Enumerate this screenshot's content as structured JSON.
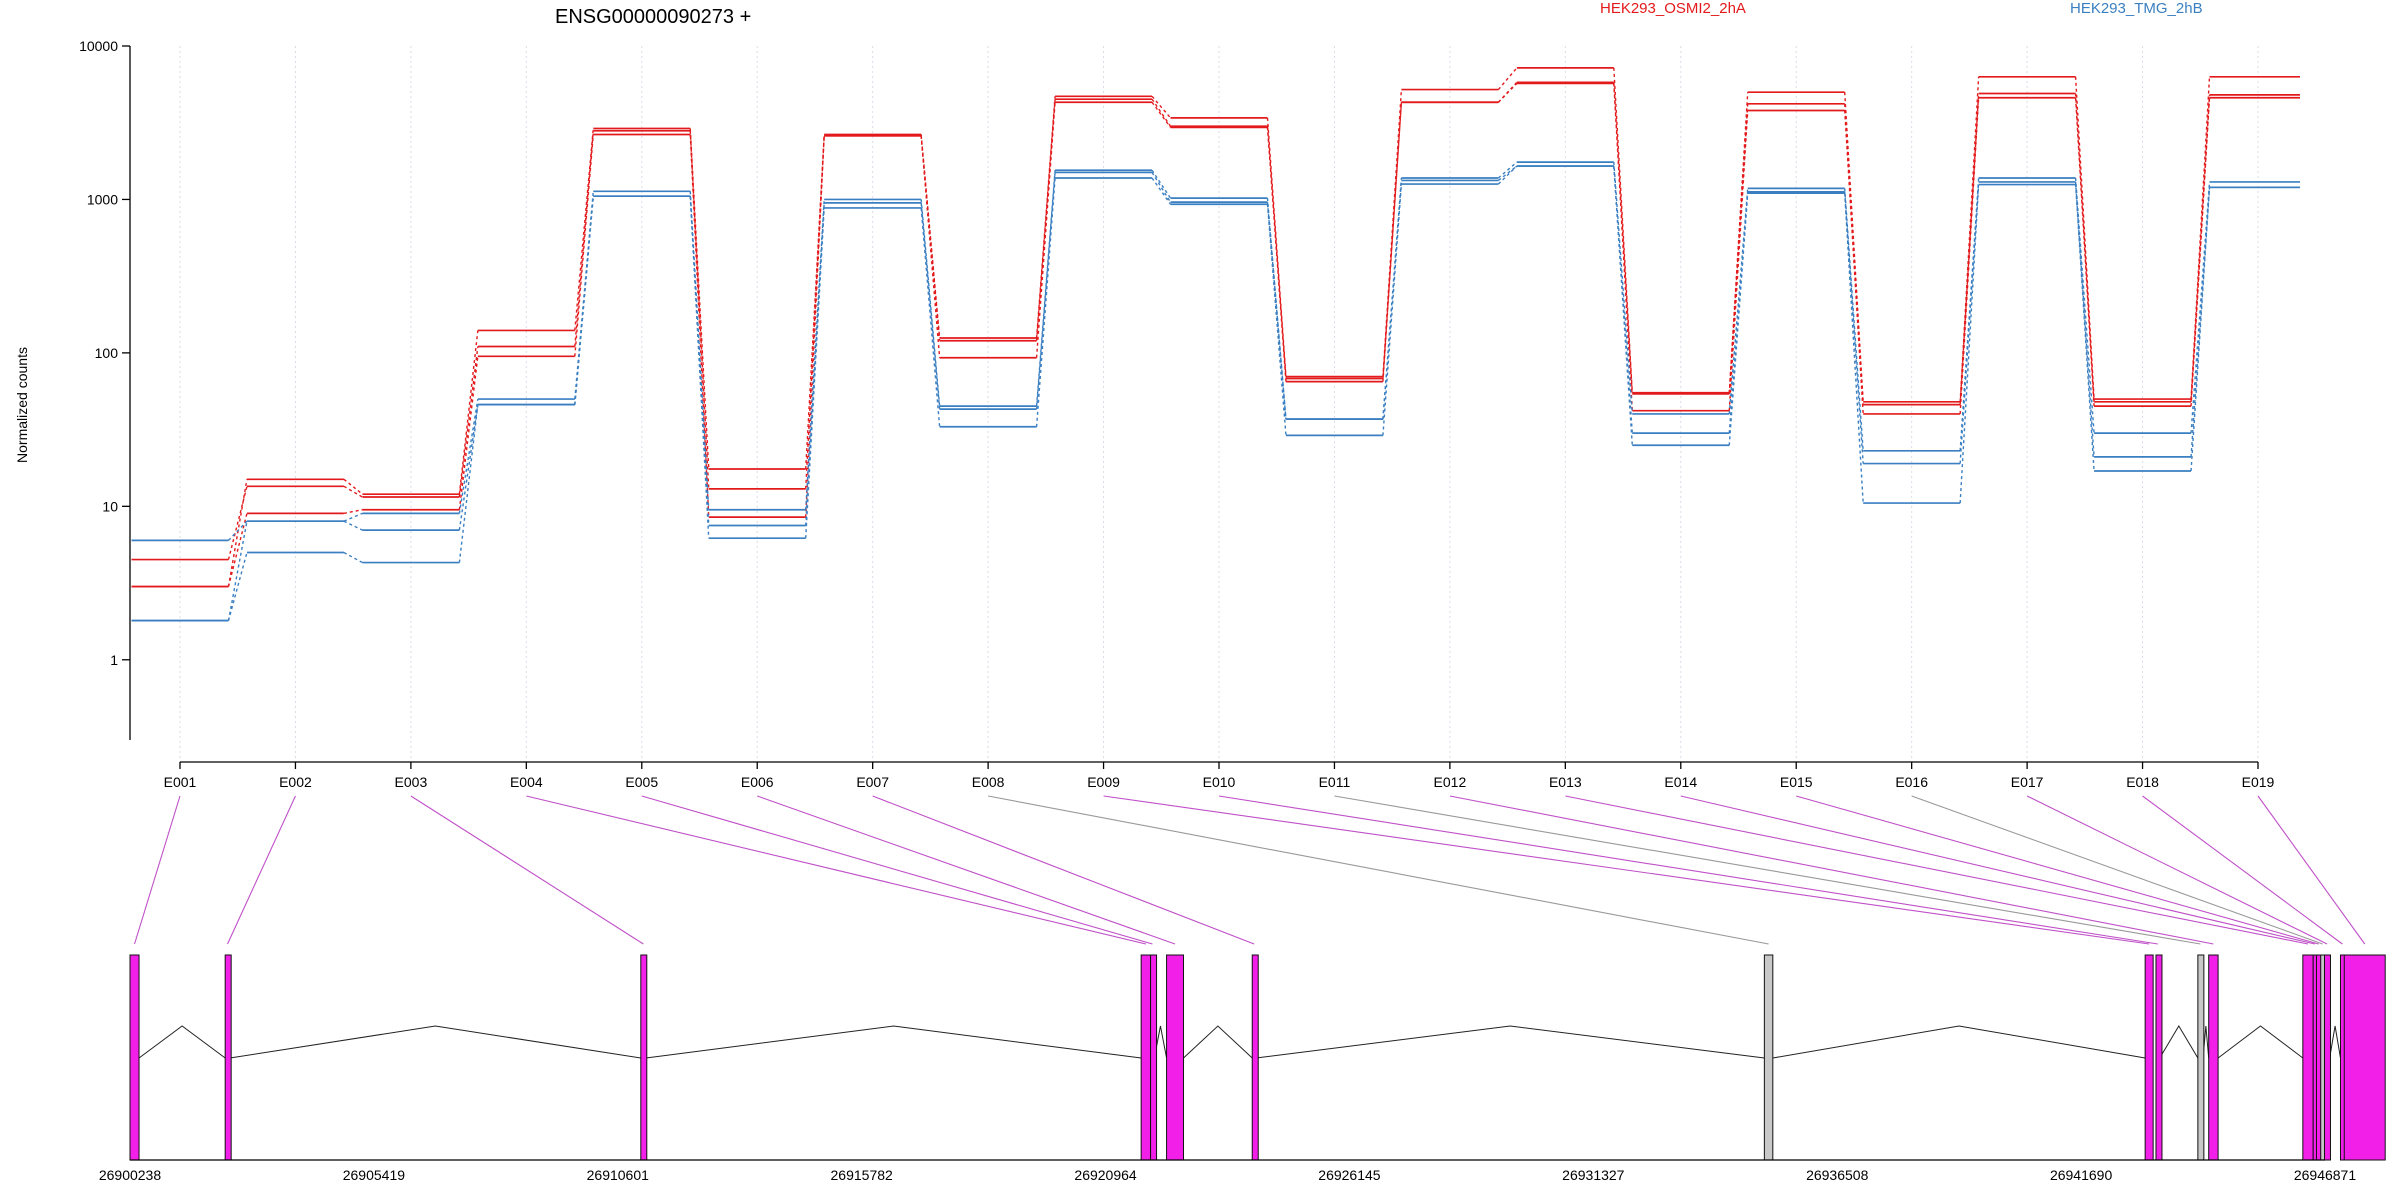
{
  "chart_data": {
    "type": "line",
    "title": "ENSG00000090273 +",
    "ylabel": "Normalized counts",
    "yscale": "log",
    "ylim": [
      0.3,
      10000
    ],
    "ytick_values": [
      1,
      10,
      100,
      1000,
      10000
    ],
    "ytick_labels": [
      "1",
      "10",
      "100",
      "1000",
      "10000"
    ],
    "grid": "vertical dotted at each exon",
    "legend_position": "top-right",
    "colors": {
      "HEK293_OSMI2_2hA": "#e31a1c",
      "HEK293_TMG_2hB": "#3a7fc1",
      "exon_fill": "#f21fe8",
      "exon_gray": "#c8c8c8",
      "connector_magenta": "#c050c8",
      "connector_gray": "#999999"
    },
    "categories": [
      "E001",
      "E002",
      "E003",
      "E004",
      "E005",
      "E006",
      "E007",
      "E008",
      "E009",
      "E010",
      "E011",
      "E012",
      "E013",
      "E014",
      "E015",
      "E016",
      "E017",
      "E018",
      "E019"
    ],
    "series": [
      {
        "name": "HEK293_OSMI2_2hA",
        "color": "#e31a1c",
        "values": [
          3.0,
          15.0,
          12.0,
          140,
          2900,
          17.5,
          2650,
          125,
          4700,
          3400,
          70,
          5200,
          7200,
          55,
          5000,
          48,
          6300,
          50,
          6300
        ]
      },
      {
        "name": "HEK293_OSMI2_2hA",
        "color": "#e31a1c",
        "values": [
          4.5,
          13.5,
          11.5,
          110,
          2800,
          13.0,
          2600,
          120,
          4500,
          3000,
          68,
          4300,
          5800,
          54,
          4200,
          46,
          4900,
          48,
          4800
        ]
      },
      {
        "name": "HEK293_OSMI2_2hA",
        "color": "#e31a1c",
        "values": [
          3.0,
          9.0,
          9.5,
          95,
          2650,
          8.5,
          2600,
          93,
          4300,
          2950,
          65,
          4300,
          5700,
          42,
          3800,
          40,
          4600,
          45,
          4600
        ]
      },
      {
        "name": "HEK293_TMG_2hB",
        "color": "#3a7fc1",
        "values": [
          6.0,
          8.0,
          9.0,
          50,
          1130,
          9.5,
          1000,
          45,
          1550,
          1020,
          37,
          1380,
          1750,
          40,
          1180,
          23,
          1380,
          30,
          1300
        ]
      },
      {
        "name": "HEK293_TMG_2hB",
        "color": "#3a7fc1",
        "values": [
          1.8,
          8.0,
          7.0,
          46,
          1050,
          7.5,
          950,
          43,
          1500,
          960,
          37,
          1330,
          1650,
          30,
          1120,
          19,
          1300,
          21,
          1200
        ]
      },
      {
        "name": "HEK293_TMG_2hB",
        "color": "#3a7fc1",
        "values": [
          1.8,
          5.0,
          4.3,
          46,
          1050,
          6.2,
          880,
          33,
          1380,
          930,
          29,
          1260,
          1650,
          25,
          1100,
          10.5,
          1250,
          17,
          1200
        ]
      }
    ],
    "gene_model": {
      "xlim": [
        26900238,
        26946871
      ],
      "xtick_labels": [
        "26900238",
        "26905419",
        "26910601",
        "26915782",
        "26920964",
        "26926145",
        "26931327",
        "26936508",
        "26941690",
        "26946871"
      ],
      "exons": [
        {
          "id": "E001",
          "start": 26900238,
          "end": 26900430,
          "tested": true
        },
        {
          "id": "E002",
          "start": 26902260,
          "end": 26902360,
          "tested": true
        },
        {
          "id": "E003",
          "start": 26911090,
          "end": 26911200,
          "tested": true
        },
        {
          "id": "E004",
          "start": 26921720,
          "end": 26921920,
          "tested": true
        },
        {
          "id": "E005",
          "start": 26921920,
          "end": 26922000,
          "tested": true
        },
        {
          "id": "E006",
          "start": 26922260,
          "end": 26922620,
          "tested": true
        },
        {
          "id": "E007",
          "start": 26924080,
          "end": 26924160,
          "tested": true
        },
        {
          "id": "E008",
          "start": 26934960,
          "end": 26935140,
          "tested": false
        },
        {
          "id": "E009",
          "start": 26943050,
          "end": 26943220,
          "tested": true
        },
        {
          "id": "E010",
          "start": 26943280,
          "end": 26943360,
          "tested": true
        },
        {
          "id": "E011",
          "start": 26944170,
          "end": 26944280,
          "tested": false
        },
        {
          "id": "E012",
          "start": 26944400,
          "end": 26944600,
          "tested": true
        },
        {
          "id": "E013",
          "start": 26946400,
          "end": 26946620,
          "tested": true
        },
        {
          "id": "E014",
          "start": 26946620,
          "end": 26946690,
          "tested": true
        },
        {
          "id": "E015",
          "start": 26946690,
          "end": 26946780,
          "tested": true
        },
        {
          "id": "E016",
          "start": 26946780,
          "end": 26946860,
          "tested": false
        },
        {
          "id": "E017",
          "start": 26946860,
          "end": 26946970,
          "tested": true
        },
        {
          "id": "E018",
          "start": 26947200,
          "end": 26947280,
          "tested": true
        },
        {
          "id": "E019",
          "start": 26947280,
          "end": 26948150,
          "tested": true
        }
      ]
    }
  }
}
